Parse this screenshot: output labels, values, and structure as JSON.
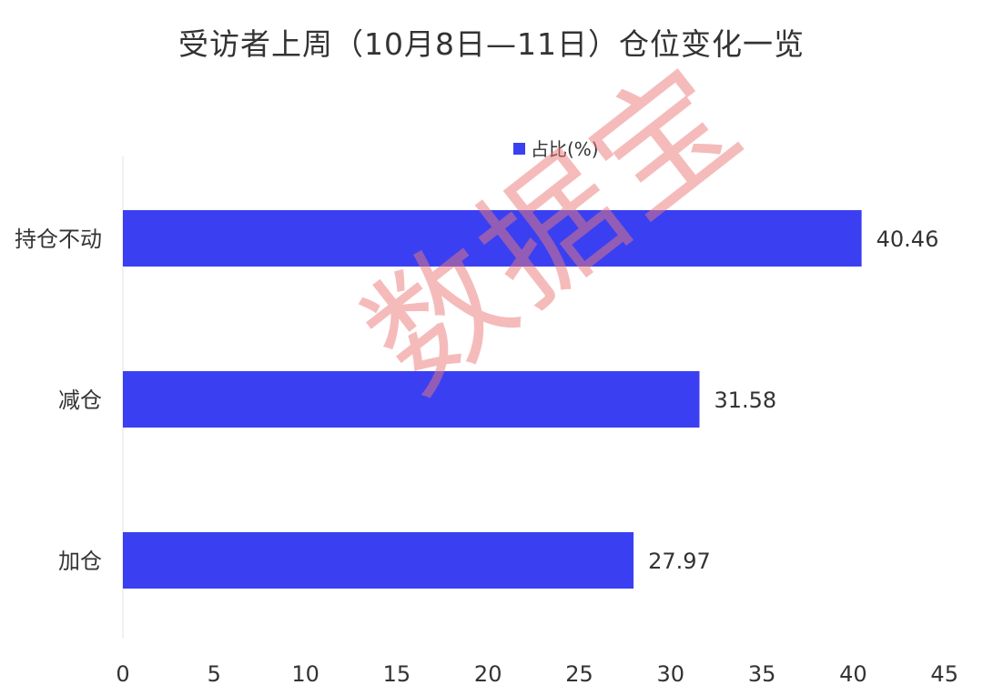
{
  "title": "受访者上周（10月8日—11日）仓位变化一览",
  "watermark": "数据宝",
  "legend": "占比(%)",
  "colors": {
    "bar": "#3a40f2",
    "axis": "#e0e0e0",
    "text": "#333333"
  },
  "chart_data": {
    "type": "bar",
    "orientation": "horizontal",
    "title": "受访者上周（10月8日—11日）仓位变化一览",
    "categories": [
      "持仓不动",
      "减仓",
      "加仓"
    ],
    "series": [
      {
        "name": "占比(%)",
        "values": [
          40.46,
          31.58,
          27.97
        ],
        "labels": [
          "40.46",
          "31.58",
          "27.97"
        ]
      }
    ],
    "xlim": [
      0,
      45
    ],
    "xticks": [
      "0",
      "5",
      "10",
      "15",
      "20",
      "25",
      "30",
      "35",
      "40",
      "45"
    ],
    "legend_position": "top",
    "grid": false
  }
}
